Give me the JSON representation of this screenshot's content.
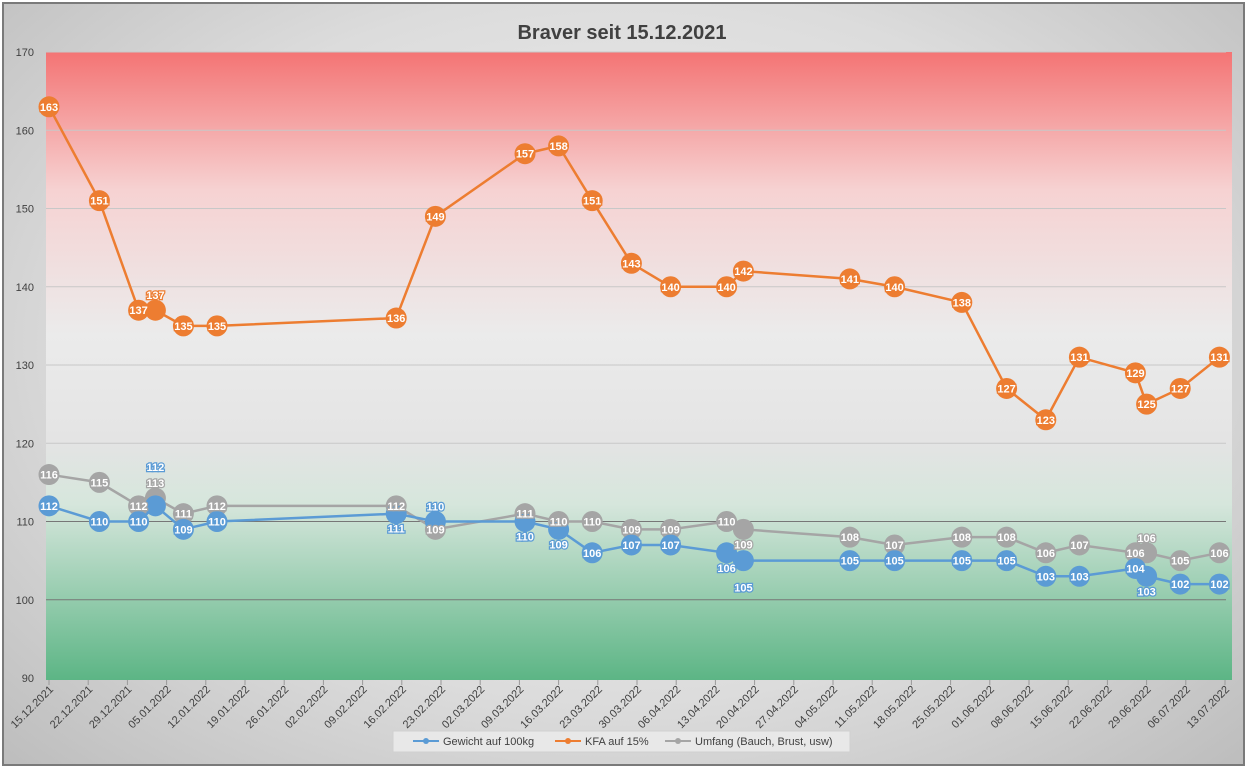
{
  "chart_data": {
    "type": "line",
    "title": "Braver seit 15.12.2021",
    "xlabel": "",
    "ylabel": "",
    "ylim": [
      90,
      170
    ],
    "yticks": [
      90,
      100,
      110,
      120,
      130,
      140,
      150,
      160,
      170
    ],
    "xticks": [
      "15.12.2021",
      "22.12.2021",
      "29.12.2021",
      "05.01.2022",
      "12.01.2022",
      "19.01.2022",
      "26.01.2022",
      "02.02.2022",
      "09.02.2022",
      "16.02.2022",
      "23.02.2022",
      "02.03.2022",
      "09.03.2022",
      "16.03.2022",
      "23.03.2022",
      "30.03.2022",
      "06.04.2022",
      "13.04.2022",
      "20.04.2022",
      "27.04.2022",
      "04.05.2022",
      "11.05.2022",
      "18.05.2022",
      "25.05.2022",
      "01.06.2022",
      "08.06.2022",
      "15.06.2022",
      "22.06.2022",
      "29.06.2022",
      "06.07.2022",
      "13.07.2022"
    ],
    "grid": true,
    "legend_position": "bottom",
    "background_zones": {
      "red_top": "#f47474",
      "green_bottom": "#5cb585"
    },
    "x": [
      "2021-12-15",
      "2021-12-24",
      "2021-12-31",
      "2022-01-03",
      "2022-01-08",
      "2022-01-14",
      "2022-02-15",
      "2022-02-22",
      "2022-03-10",
      "2022-03-16",
      "2022-03-22",
      "2022-03-29",
      "2022-04-05",
      "2022-04-15",
      "2022-04-18",
      "2022-05-07",
      "2022-05-15",
      "2022-05-27",
      "2022-06-04",
      "2022-06-11",
      "2022-06-17",
      "2022-06-27",
      "2022-06-29",
      "2022-07-05",
      "2022-07-12"
    ],
    "series": [
      {
        "name": "Gewicht auf 100kg",
        "color": "#5b9bd5",
        "values": [
          112,
          110,
          110,
          112,
          109,
          110,
          111,
          110,
          110,
          109,
          106,
          107,
          107,
          106,
          105,
          105,
          105,
          105,
          105,
          103,
          103,
          104,
          103,
          102,
          102
        ]
      },
      {
        "name": "KFA auf 15%",
        "color": "#ed7d31",
        "values": [
          163,
          151,
          137,
          137,
          135,
          135,
          136,
          149,
          157,
          158,
          151,
          143,
          140,
          140,
          142,
          141,
          140,
          138,
          127,
          123,
          131,
          129,
          125,
          127,
          131
        ]
      },
      {
        "name": "Umfang (Bauch, Brust, usw)",
        "color": "#a5a5a5",
        "values": [
          116,
          115,
          112,
          113,
          111,
          112,
          112,
          109,
          111,
          110,
          110,
          109,
          109,
          110,
          109,
          108,
          107,
          108,
          108,
          106,
          107,
          106,
          106,
          105,
          106
        ]
      }
    ]
  }
}
